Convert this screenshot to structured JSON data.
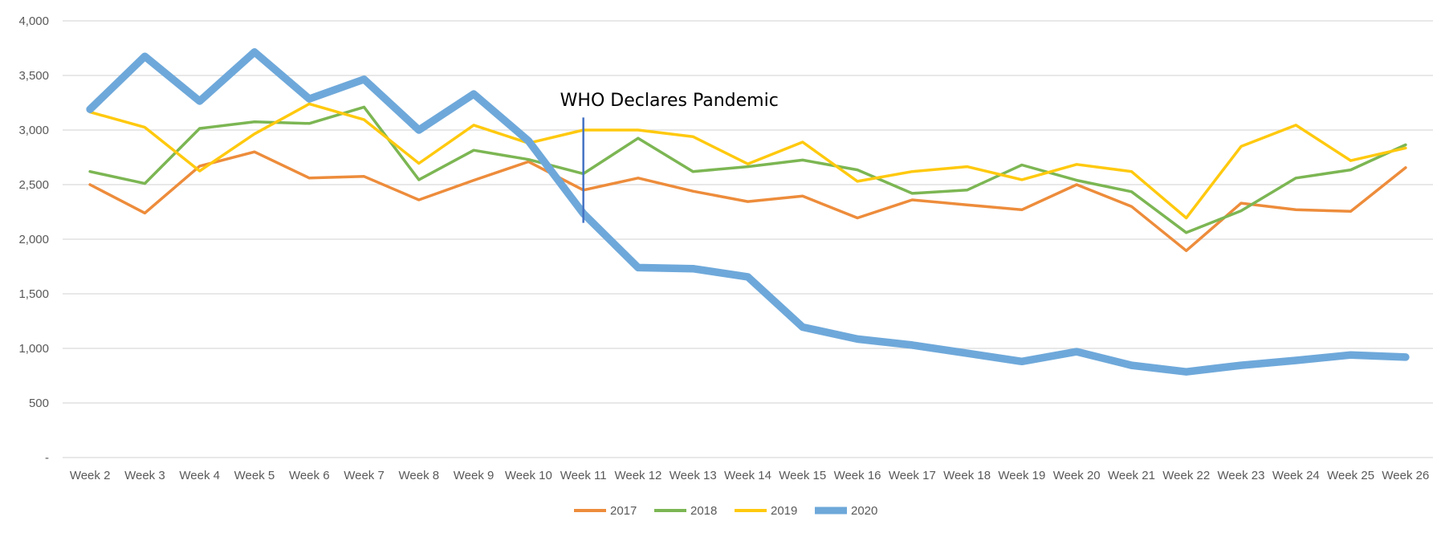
{
  "chart_data": {
    "type": "line",
    "title": "",
    "xlabel": "",
    "ylabel": "",
    "ylim": [
      0,
      4000
    ],
    "yticks": [
      0,
      500,
      1000,
      1500,
      2000,
      2500,
      3000,
      3500,
      4000
    ],
    "ytick_labels": [
      "-",
      "500",
      "1,000",
      "1,500",
      "2,000",
      "2,500",
      "3,000",
      "3,500",
      "4,000"
    ],
    "grid": "horizontal",
    "legend_position": "bottom",
    "categories": [
      "Week 2",
      "Week 3",
      "Week 4",
      "Week 5",
      "Week 6",
      "Week 7",
      "Week 8",
      "Week 9",
      "Week 10",
      "Week 11",
      "Week 12",
      "Week 13",
      "Week 14",
      "Week 15",
      "Week 16",
      "Week 17",
      "Week 18",
      "Week 19",
      "Week 20",
      "Week 21",
      "Week 22",
      "Week 23",
      "Week 24",
      "Week 25",
      "Week 26"
    ],
    "series": [
      {
        "name": "2017",
        "color": "#ED8C3B",
        "values": [
          2500,
          2240,
          2670,
          2800,
          2560,
          2575,
          2360,
          2540,
          2710,
          2450,
          2560,
          2440,
          2345,
          2395,
          2195,
          2360,
          2315,
          2270,
          2500,
          2300,
          1895,
          2330,
          2270,
          2255,
          2655
        ]
      },
      {
        "name": "2018",
        "color": "#7CB653",
        "values": [
          2620,
          2510,
          3015,
          3075,
          3060,
          3210,
          2545,
          2815,
          2730,
          2600,
          2925,
          2620,
          2665,
          2725,
          2635,
          2420,
          2450,
          2680,
          2540,
          2435,
          2060,
          2260,
          2560,
          2635,
          2865
        ]
      },
      {
        "name": "2019",
        "color": "#FFC90E",
        "values": [
          3165,
          3025,
          2625,
          2965,
          3240,
          3095,
          2695,
          3045,
          2880,
          3000,
          3000,
          2940,
          2690,
          2890,
          2530,
          2620,
          2665,
          2545,
          2685,
          2620,
          2195,
          2850,
          3045,
          2720,
          2835
        ]
      },
      {
        "name": "2020",
        "color": "#6EA8DA",
        "values": [
          3190,
          3675,
          3265,
          3715,
          3285,
          3465,
          3000,
          3330,
          2900,
          2235,
          1740,
          1730,
          1655,
          1195,
          1085,
          1030,
          955,
          880,
          970,
          845,
          785,
          845,
          890,
          940,
          920
        ]
      }
    ],
    "annotations": [
      {
        "text": "WHO Declares Pandemic",
        "x_category": "Week 11",
        "y_from": 2150,
        "y_to": 3115,
        "color": "#4472C4"
      }
    ]
  }
}
